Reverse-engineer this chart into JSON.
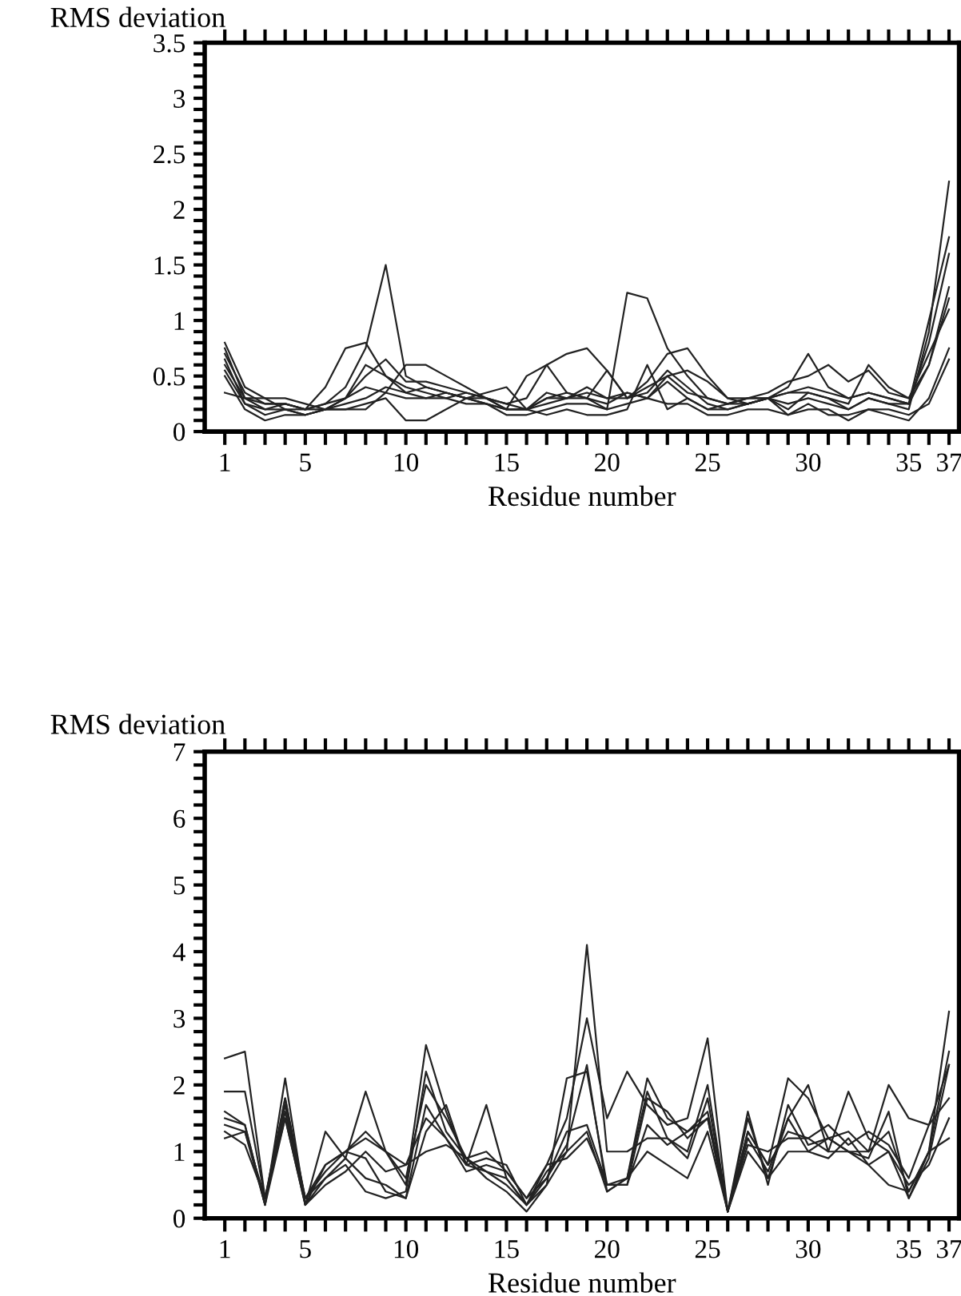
{
  "chart_data": [
    {
      "type": "line",
      "ylabel": "RMS deviation",
      "xlabel": "Residue number",
      "line_style": "solid",
      "marker": "none",
      "grid": false,
      "x": [
        1,
        2,
        3,
        4,
        5,
        6,
        7,
        8,
        9,
        10,
        11,
        12,
        13,
        14,
        15,
        16,
        17,
        18,
        19,
        20,
        21,
        22,
        23,
        24,
        25,
        26,
        27,
        28,
        29,
        30,
        31,
        32,
        33,
        34,
        35,
        36,
        37
      ],
      "xlim": [
        0,
        37.5
      ],
      "ylim": [
        0,
        3.5
      ],
      "xticks": [
        1,
        {
          "value": 2,
          "label": null
        },
        {
          "value": 3,
          "label": null
        },
        {
          "value": 4,
          "label": null
        },
        5,
        {
          "value": 6,
          "label": null
        },
        {
          "value": 7,
          "label": null
        },
        {
          "value": 8,
          "label": null
        },
        {
          "value": 9,
          "label": null
        },
        10,
        {
          "value": 11,
          "label": null
        },
        {
          "value": 12,
          "label": null
        },
        {
          "value": 13,
          "label": null
        },
        {
          "value": 14,
          "label": null
        },
        15,
        {
          "value": 16,
          "label": null
        },
        {
          "value": 17,
          "label": null
        },
        {
          "value": 18,
          "label": null
        },
        {
          "value": 19,
          "label": null
        },
        20,
        {
          "value": 21,
          "label": null
        },
        {
          "value": 22,
          "label": null
        },
        {
          "value": 23,
          "label": null
        },
        {
          "value": 24,
          "label": null
        },
        25,
        {
          "value": 26,
          "label": null
        },
        {
          "value": 27,
          "label": null
        },
        {
          "value": 28,
          "label": null
        },
        {
          "value": 29,
          "label": null
        },
        30,
        {
          "value": 31,
          "label": null
        },
        {
          "value": 32,
          "label": null
        },
        {
          "value": 33,
          "label": null
        },
        {
          "value": 34,
          "label": null
        },
        35,
        {
          "value": 36,
          "label": null
        },
        37
      ],
      "yticks": [
        0,
        {
          "value": 0.1,
          "label": null
        },
        {
          "value": 0.2,
          "label": null
        },
        {
          "value": 0.3,
          "label": null
        },
        {
          "value": 0.4,
          "label": null
        },
        0.5,
        {
          "value": 0.6,
          "label": null
        },
        {
          "value": 0.7,
          "label": null
        },
        {
          "value": 0.8,
          "label": null
        },
        {
          "value": 0.9,
          "label": null
        },
        1,
        {
          "value": 1.1,
          "label": null
        },
        {
          "value": 1.2,
          "label": null
        },
        {
          "value": 1.3,
          "label": null
        },
        {
          "value": 1.4,
          "label": null
        },
        1.5,
        {
          "value": 1.6,
          "label": null
        },
        {
          "value": 1.7,
          "label": null
        },
        {
          "value": 1.8,
          "label": null
        },
        {
          "value": 1.9,
          "label": null
        },
        2,
        {
          "value": 2.1,
          "label": null
        },
        {
          "value": 2.2,
          "label": null
        },
        {
          "value": 2.3,
          "label": null
        },
        {
          "value": 2.4,
          "label": null
        },
        2.5,
        {
          "value": 2.6,
          "label": null
        },
        {
          "value": 2.7,
          "label": null
        },
        {
          "value": 2.8,
          "label": null
        },
        {
          "value": 2.9,
          "label": null
        },
        3,
        {
          "value": 3.1,
          "label": null
        },
        {
          "value": 3.2,
          "label": null
        },
        {
          "value": 3.3,
          "label": null
        },
        {
          "value": 3.4,
          "label": null
        },
        3.5
      ],
      "series": [
        {
          "color": "#222222",
          "values": [
            0.7,
            0.35,
            0.25,
            0.25,
            0.2,
            0.25,
            0.4,
            0.75,
            1.5,
            0.5,
            0.4,
            0.35,
            0.3,
            0.3,
            0.2,
            0.2,
            0.3,
            0.35,
            0.3,
            0.25,
            0.35,
            0.3,
            0.45,
            0.3,
            0.2,
            0.25,
            0.25,
            0.3,
            0.2,
            0.35,
            0.3,
            0.2,
            0.3,
            0.25,
            0.25,
            0.8,
            1.6
          ]
        },
        {
          "color": "#222222",
          "values": [
            0.8,
            0.4,
            0.3,
            0.2,
            0.2,
            0.2,
            0.25,
            0.3,
            0.4,
            0.35,
            0.4,
            0.35,
            0.3,
            0.25,
            0.2,
            0.2,
            0.25,
            0.3,
            0.3,
            0.2,
            1.25,
            1.2,
            0.75,
            0.5,
            0.3,
            0.25,
            0.3,
            0.3,
            0.25,
            0.3,
            0.25,
            0.2,
            0.3,
            0.25,
            0.2,
            0.9,
            2.25
          ]
        },
        {
          "color": "#222222",
          "values": [
            0.6,
            0.3,
            0.2,
            0.25,
            0.2,
            0.4,
            0.75,
            0.8,
            0.5,
            0.35,
            0.3,
            0.35,
            0.3,
            0.25,
            0.2,
            0.2,
            0.3,
            0.3,
            0.35,
            0.3,
            0.3,
            0.45,
            0.7,
            0.75,
            0.5,
            0.3,
            0.25,
            0.3,
            0.4,
            0.7,
            0.4,
            0.3,
            0.35,
            0.3,
            0.25,
            1.0,
            1.75
          ]
        },
        {
          "color": "#222222",
          "values": [
            0.35,
            0.3,
            0.3,
            0.3,
            0.25,
            0.2,
            0.3,
            0.4,
            0.35,
            0.6,
            0.6,
            0.5,
            0.4,
            0.3,
            0.2,
            0.5,
            0.6,
            0.7,
            0.75,
            0.55,
            0.3,
            0.4,
            0.5,
            0.55,
            0.45,
            0.3,
            0.3,
            0.35,
            0.45,
            0.5,
            0.6,
            0.45,
            0.55,
            0.35,
            0.3,
            0.6,
            1.3
          ]
        },
        {
          "color": "#222222",
          "values": [
            0.65,
            0.25,
            0.15,
            0.2,
            0.15,
            0.2,
            0.2,
            0.25,
            0.3,
            0.1,
            0.1,
            0.2,
            0.3,
            0.35,
            0.4,
            0.2,
            0.15,
            0.2,
            0.15,
            0.15,
            0.2,
            0.6,
            0.2,
            0.3,
            0.2,
            0.2,
            0.25,
            0.3,
            0.15,
            0.2,
            0.2,
            0.1,
            0.2,
            0.15,
            0.1,
            0.3,
            0.75
          ]
        },
        {
          "color": "#222222",
          "values": [
            0.75,
            0.3,
            0.25,
            0.25,
            0.2,
            0.25,
            0.3,
            0.5,
            0.65,
            0.45,
            0.45,
            0.4,
            0.35,
            0.3,
            0.25,
            0.3,
            0.6,
            0.35,
            0.3,
            0.55,
            0.3,
            0.35,
            0.55,
            0.4,
            0.25,
            0.2,
            0.25,
            0.3,
            0.35,
            0.35,
            0.3,
            0.25,
            0.6,
            0.4,
            0.3,
            0.7,
            1.1
          ]
        },
        {
          "color": "#222222",
          "values": [
            0.5,
            0.2,
            0.1,
            0.15,
            0.15,
            0.2,
            0.2,
            0.2,
            0.35,
            0.3,
            0.3,
            0.3,
            0.25,
            0.25,
            0.15,
            0.15,
            0.2,
            0.25,
            0.25,
            0.2,
            0.25,
            0.3,
            0.25,
            0.25,
            0.15,
            0.15,
            0.2,
            0.2,
            0.15,
            0.25,
            0.15,
            0.15,
            0.2,
            0.2,
            0.15,
            0.25,
            0.65
          ]
        },
        {
          "color": "#222222",
          "values": [
            0.55,
            0.25,
            0.2,
            0.2,
            0.15,
            0.2,
            0.3,
            0.6,
            0.5,
            0.4,
            0.35,
            0.3,
            0.35,
            0.3,
            0.25,
            0.2,
            0.35,
            0.3,
            0.4,
            0.3,
            0.35,
            0.3,
            0.5,
            0.35,
            0.3,
            0.25,
            0.3,
            0.3,
            0.35,
            0.4,
            0.35,
            0.3,
            0.35,
            0.3,
            0.25,
            0.6,
            1.2
          ]
        }
      ]
    },
    {
      "type": "line",
      "ylabel": "RMS deviation",
      "xlabel": "Residue number",
      "line_style": "solid",
      "marker": "none",
      "grid": false,
      "x": [
        1,
        2,
        3,
        4,
        5,
        6,
        7,
        8,
        9,
        10,
        11,
        12,
        13,
        14,
        15,
        16,
        17,
        18,
        19,
        20,
        21,
        22,
        23,
        24,
        25,
        26,
        27,
        28,
        29,
        30,
        31,
        32,
        33,
        34,
        35,
        36,
        37
      ],
      "xlim": [
        0,
        37.5
      ],
      "ylim": [
        0,
        7
      ],
      "xticks": [
        1,
        {
          "value": 2,
          "label": null
        },
        {
          "value": 3,
          "label": null
        },
        {
          "value": 4,
          "label": null
        },
        5,
        {
          "value": 6,
          "label": null
        },
        {
          "value": 7,
          "label": null
        },
        {
          "value": 8,
          "label": null
        },
        {
          "value": 9,
          "label": null
        },
        10,
        {
          "value": 11,
          "label": null
        },
        {
          "value": 12,
          "label": null
        },
        {
          "value": 13,
          "label": null
        },
        {
          "value": 14,
          "label": null
        },
        15,
        {
          "value": 16,
          "label": null
        },
        {
          "value": 17,
          "label": null
        },
        {
          "value": 18,
          "label": null
        },
        {
          "value": 19,
          "label": null
        },
        20,
        {
          "value": 21,
          "label": null
        },
        {
          "value": 22,
          "label": null
        },
        {
          "value": 23,
          "label": null
        },
        {
          "value": 24,
          "label": null
        },
        25,
        {
          "value": 26,
          "label": null
        },
        {
          "value": 27,
          "label": null
        },
        {
          "value": 28,
          "label": null
        },
        {
          "value": 29,
          "label": null
        },
        30,
        {
          "value": 31,
          "label": null
        },
        {
          "value": 32,
          "label": null
        },
        {
          "value": 33,
          "label": null
        },
        {
          "value": 34,
          "label": null
        },
        35,
        {
          "value": 36,
          "label": null
        },
        37
      ],
      "yticks": [
        0,
        {
          "value": 0.2,
          "label": null
        },
        {
          "value": 0.4,
          "label": null
        },
        {
          "value": 0.6,
          "label": null
        },
        {
          "value": 0.8,
          "label": null
        },
        1,
        {
          "value": 1.2,
          "label": null
        },
        {
          "value": 1.4,
          "label": null
        },
        {
          "value": 1.6,
          "label": null
        },
        {
          "value": 1.8,
          "label": null
        },
        2,
        {
          "value": 2.2,
          "label": null
        },
        {
          "value": 2.4,
          "label": null
        },
        {
          "value": 2.6,
          "label": null
        },
        {
          "value": 2.8,
          "label": null
        },
        3,
        {
          "value": 3.2,
          "label": null
        },
        {
          "value": 3.4,
          "label": null
        },
        {
          "value": 3.6,
          "label": null
        },
        {
          "value": 3.8,
          "label": null
        },
        4,
        {
          "value": 4.2,
          "label": null
        },
        {
          "value": 4.4,
          "label": null
        },
        {
          "value": 4.6,
          "label": null
        },
        {
          "value": 4.8,
          "label": null
        },
        5,
        {
          "value": 5.2,
          "label": null
        },
        {
          "value": 5.4,
          "label": null
        },
        {
          "value": 5.6,
          "label": null
        },
        {
          "value": 5.8,
          "label": null
        },
        6,
        {
          "value": 6.2,
          "label": null
        },
        {
          "value": 6.4,
          "label": null
        },
        {
          "value": 6.6,
          "label": null
        },
        {
          "value": 6.8,
          "label": null
        },
        7
      ],
      "series": [
        {
          "color": "#222222",
          "values": [
            2.4,
            2.5,
            0.3,
            1.5,
            0.2,
            0.8,
            1.0,
            1.2,
            1.0,
            0.8,
            1.5,
            1.2,
            0.8,
            0.7,
            0.6,
            0.2,
            0.7,
            1.0,
            4.1,
            1.0,
            1.0,
            1.2,
            1.2,
            1.0,
            2.0,
            0.1,
            1.2,
            0.7,
            1.5,
            1.0,
            1.2,
            1.0,
            0.8,
            0.5,
            0.4,
            1.0,
            3.1
          ]
        },
        {
          "color": "#222222",
          "values": [
            1.9,
            1.9,
            0.3,
            1.8,
            0.3,
            0.8,
            1.0,
            1.3,
            1.0,
            0.6,
            2.0,
            1.5,
            0.9,
            0.7,
            0.5,
            0.2,
            0.8,
            1.5,
            3.0,
            1.5,
            2.2,
            1.7,
            1.4,
            1.5,
            2.7,
            0.1,
            1.3,
            0.8,
            2.1,
            1.8,
            1.2,
            1.3,
            1.0,
            2.0,
            1.5,
            1.4,
            2.3
          ]
        },
        {
          "color": "#222222",
          "values": [
            1.6,
            1.4,
            0.2,
            2.1,
            0.2,
            1.3,
            0.9,
            1.9,
            1.0,
            0.5,
            2.6,
            1.6,
            0.8,
            1.7,
            0.6,
            0.2,
            0.5,
            2.1,
            2.2,
            0.5,
            0.6,
            2.1,
            1.5,
            1.3,
            1.5,
            0.1,
            1.5,
            0.6,
            1.5,
            2.0,
            1.0,
            1.9,
            1.2,
            1.0,
            0.3,
            1.0,
            2.5
          ]
        },
        {
          "color": "#222222",
          "values": [
            1.2,
            1.3,
            0.3,
            1.6,
            0.3,
            0.6,
            0.8,
            0.4,
            0.3,
            0.4,
            2.2,
            1.3,
            0.9,
            0.6,
            0.4,
            0.1,
            0.5,
            1.0,
            1.3,
            0.4,
            0.6,
            1.0,
            0.8,
            0.6,
            1.3,
            0.1,
            1.0,
            0.6,
            1.0,
            1.0,
            0.9,
            1.2,
            0.8,
            1.0,
            0.5,
            0.8,
            1.5
          ]
        },
        {
          "color": "#222222",
          "values": [
            1.5,
            1.4,
            0.2,
            1.8,
            0.2,
            0.6,
            0.9,
            0.6,
            0.5,
            0.3,
            1.7,
            1.2,
            0.7,
            0.8,
            0.7,
            0.3,
            0.6,
            1.1,
            2.3,
            0.4,
            0.6,
            1.9,
            1.2,
            0.9,
            1.8,
            0.1,
            1.6,
            0.5,
            1.7,
            1.1,
            1.2,
            1.0,
            0.9,
            1.6,
            0.3,
            0.9,
            2.3
          ]
        },
        {
          "color": "#222222",
          "values": [
            1.3,
            1.1,
            0.3,
            1.7,
            0.3,
            0.7,
            1.0,
            0.9,
            0.4,
            0.3,
            1.3,
            1.7,
            0.8,
            0.9,
            0.8,
            0.2,
            0.6,
            1.3,
            1.4,
            0.5,
            0.5,
            1.8,
            1.6,
            1.2,
            1.5,
            0.1,
            1.3,
            0.8,
            1.3,
            1.2,
            1.4,
            1.1,
            1.3,
            1.1,
            0.6,
            1.4,
            1.8
          ]
        },
        {
          "color": "#222222",
          "values": [
            1.4,
            1.3,
            0.2,
            1.5,
            0.2,
            0.5,
            0.7,
            1.0,
            0.7,
            0.8,
            1.0,
            1.1,
            0.9,
            1.0,
            0.7,
            0.3,
            0.8,
            0.9,
            1.2,
            0.5,
            0.5,
            1.4,
            1.1,
            1.3,
            1.6,
            0.1,
            1.1,
            1.0,
            1.2,
            1.2,
            1.0,
            1.0,
            1.0,
            1.3,
            0.4,
            1.0,
            1.2
          ]
        }
      ]
    }
  ]
}
